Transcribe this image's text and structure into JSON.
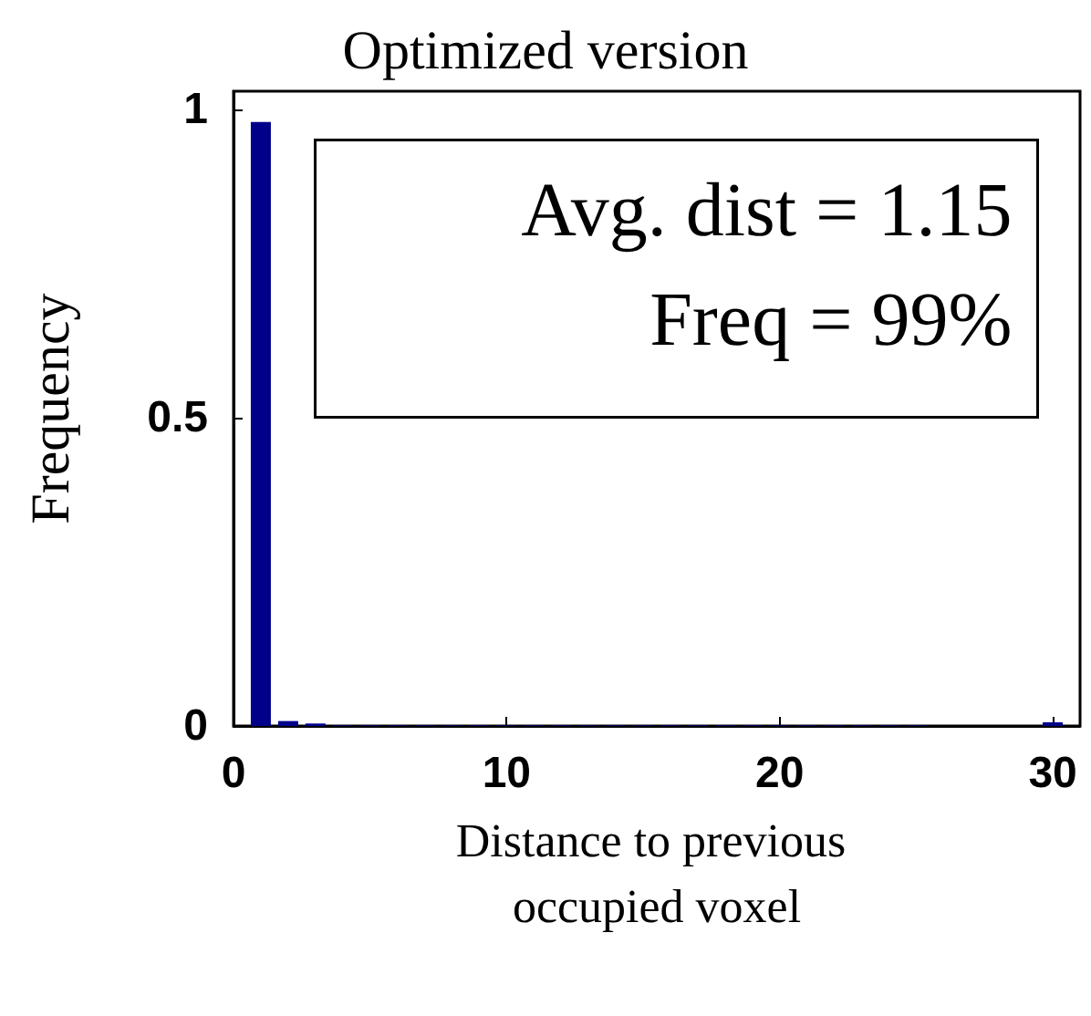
{
  "chart_data": {
    "type": "bar",
    "title": "Optimized version",
    "xlabel": "Distance to previous occupied voxel",
    "ylabel": "Frequency",
    "annotations": [
      "Avg. dist = 1.15",
      "Freq = 99%"
    ],
    "x": [
      1,
      2,
      3,
      4,
      5,
      6,
      7,
      8,
      9,
      10,
      11,
      12,
      13,
      14,
      15,
      16,
      17,
      18,
      19,
      20,
      21,
      22,
      23,
      24,
      25,
      26,
      27,
      28,
      29,
      30
    ],
    "values": [
      0.98,
      0.008,
      0.004,
      0.001,
      0.001,
      0.001,
      0.001,
      0.001,
      0.001,
      0.001,
      0.001,
      0.001,
      0.001,
      0.001,
      0.001,
      0.001,
      0.001,
      0.001,
      0.001,
      0.001,
      0.001,
      0.001,
      0.001,
      0.001,
      0.001,
      0,
      0,
      0,
      0,
      0.006
    ],
    "color": "#00008b",
    "xlim": [
      0,
      31
    ],
    "xticks": [
      0,
      10,
      20,
      30
    ],
    "ylim": [
      0,
      1.03
    ],
    "yticks": [
      0,
      0.5,
      1
    ],
    "grid": false
  }
}
